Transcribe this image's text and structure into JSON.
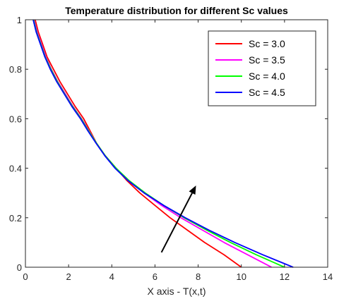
{
  "chart_data": {
    "type": "line",
    "title": "Temperature distribution for different Sc values",
    "xlabel": "X axis - T(x,t)",
    "ylabel": "",
    "xlim": [
      0,
      14
    ],
    "ylim": [
      0,
      1
    ],
    "xticks": [
      "0",
      "2",
      "4",
      "6",
      "8",
      "10",
      "12",
      "14"
    ],
    "yticks": [
      "0",
      "0.2",
      "0.4",
      "0.6",
      "0.8",
      "1"
    ],
    "grid": false,
    "legend_position": "top-right",
    "series": [
      {
        "name": "Sc = 3.0",
        "color": "#ff0000",
        "points": [
          [
            0.45,
            1.0
          ],
          [
            0.6,
            0.95
          ],
          [
            0.8,
            0.9
          ],
          [
            1.0,
            0.85
          ],
          [
            1.3,
            0.8
          ],
          [
            1.6,
            0.75
          ],
          [
            1.95,
            0.7
          ],
          [
            2.3,
            0.65
          ],
          [
            2.7,
            0.6
          ],
          [
            3.0,
            0.55
          ],
          [
            3.3,
            0.5
          ],
          [
            3.7,
            0.45
          ],
          [
            4.2,
            0.4
          ],
          [
            4.7,
            0.35
          ],
          [
            5.3,
            0.3
          ],
          [
            6.0,
            0.25
          ],
          [
            6.7,
            0.2
          ],
          [
            7.5,
            0.15
          ],
          [
            8.3,
            0.1
          ],
          [
            9.2,
            0.05
          ],
          [
            10.0,
            0.0
          ]
        ]
      },
      {
        "name": "Sc = 3.5",
        "color": "#ff00ff",
        "points": [
          [
            0.4,
            1.0
          ],
          [
            0.55,
            0.95
          ],
          [
            0.75,
            0.9
          ],
          [
            0.95,
            0.85
          ],
          [
            1.2,
            0.8
          ],
          [
            1.5,
            0.75
          ],
          [
            1.85,
            0.7
          ],
          [
            2.2,
            0.65
          ],
          [
            2.6,
            0.6
          ],
          [
            2.95,
            0.55
          ],
          [
            3.3,
            0.5
          ],
          [
            3.7,
            0.45
          ],
          [
            4.2,
            0.4
          ],
          [
            4.8,
            0.35
          ],
          [
            5.5,
            0.3
          ],
          [
            6.3,
            0.25
          ],
          [
            7.2,
            0.2
          ],
          [
            8.2,
            0.15
          ],
          [
            9.2,
            0.1
          ],
          [
            10.3,
            0.05
          ],
          [
            11.4,
            0.0
          ]
        ]
      },
      {
        "name": "Sc = 4.0",
        "color": "#00ff00",
        "points": [
          [
            0.38,
            1.0
          ],
          [
            0.52,
            0.95
          ],
          [
            0.72,
            0.9
          ],
          [
            0.92,
            0.85
          ],
          [
            1.18,
            0.8
          ],
          [
            1.48,
            0.75
          ],
          [
            1.82,
            0.7
          ],
          [
            2.18,
            0.65
          ],
          [
            2.58,
            0.6
          ],
          [
            2.93,
            0.55
          ],
          [
            3.3,
            0.5
          ],
          [
            3.7,
            0.45
          ],
          [
            4.2,
            0.4
          ],
          [
            4.8,
            0.35
          ],
          [
            5.55,
            0.3
          ],
          [
            6.4,
            0.25
          ],
          [
            7.35,
            0.2
          ],
          [
            8.4,
            0.15
          ],
          [
            9.5,
            0.1
          ],
          [
            10.7,
            0.05
          ],
          [
            12.0,
            0.0
          ]
        ]
      },
      {
        "name": "Sc = 4.5",
        "color": "#0000ff",
        "points": [
          [
            0.36,
            1.0
          ],
          [
            0.5,
            0.95
          ],
          [
            0.7,
            0.9
          ],
          [
            0.9,
            0.85
          ],
          [
            1.15,
            0.8
          ],
          [
            1.45,
            0.75
          ],
          [
            1.8,
            0.7
          ],
          [
            2.15,
            0.65
          ],
          [
            2.55,
            0.6
          ],
          [
            2.9,
            0.55
          ],
          [
            3.28,
            0.5
          ],
          [
            3.68,
            0.45
          ],
          [
            4.15,
            0.4
          ],
          [
            4.75,
            0.35
          ],
          [
            5.5,
            0.3
          ],
          [
            6.4,
            0.25
          ],
          [
            7.4,
            0.2
          ],
          [
            8.5,
            0.15
          ],
          [
            9.7,
            0.1
          ],
          [
            11.0,
            0.05
          ],
          [
            12.4,
            0.0
          ]
        ]
      }
    ],
    "annotations": [
      {
        "type": "arrow",
        "from": [
          6.3,
          0.06
        ],
        "to": [
          7.9,
          0.33
        ],
        "color": "#000000"
      }
    ]
  }
}
